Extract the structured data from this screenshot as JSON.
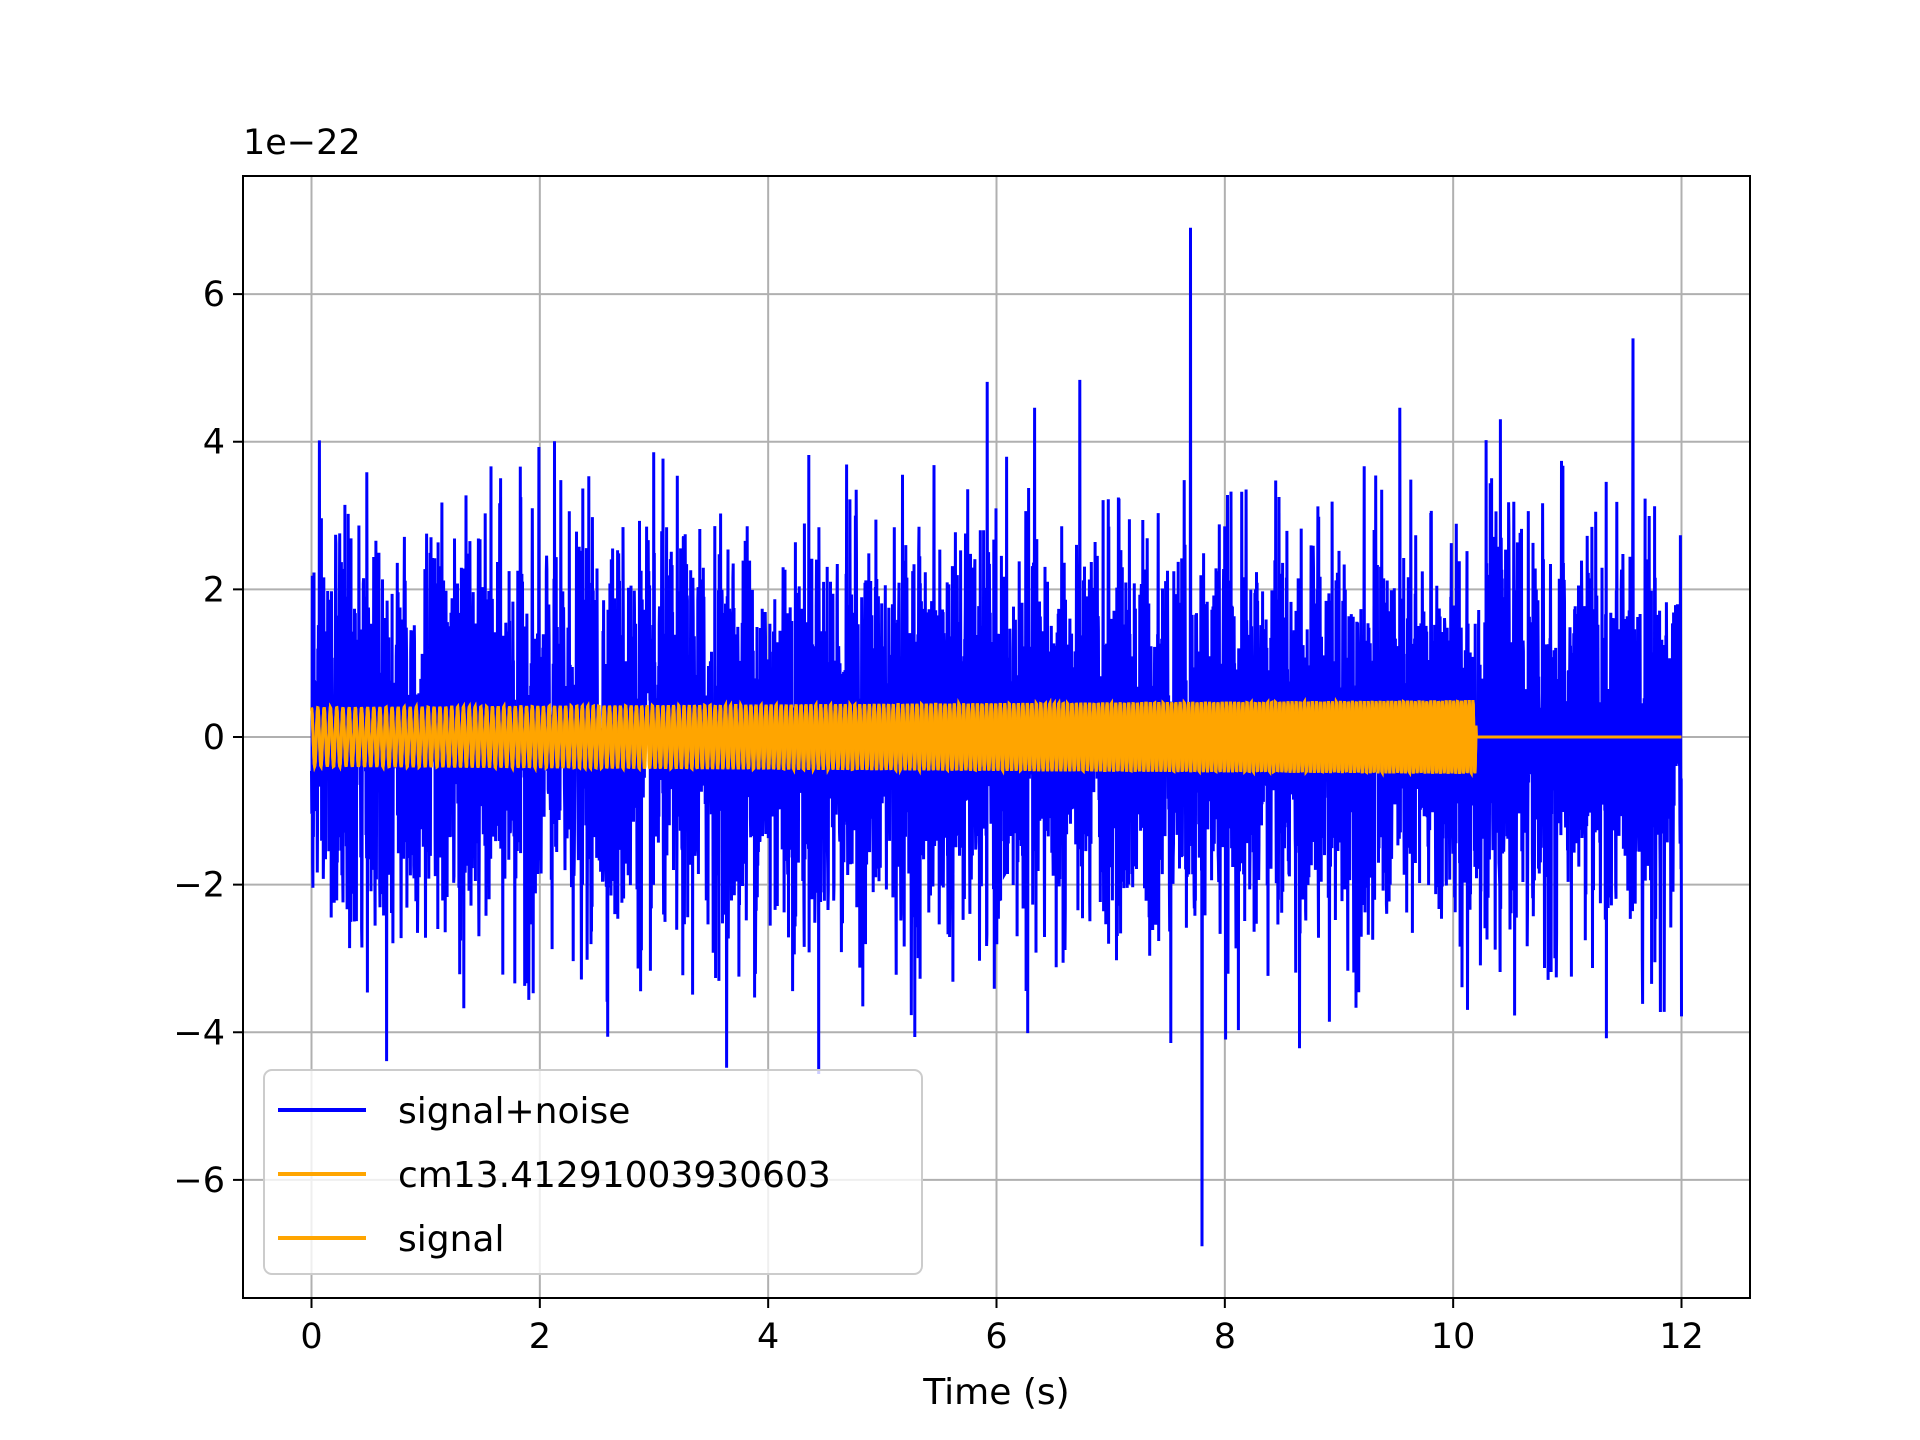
{
  "chart_data": {
    "type": "line",
    "title": "",
    "xlabel": "Time (s)",
    "ylabel": "",
    "offset_label": "1e−22",
    "xlim": [
      -0.6,
      12.6
    ],
    "ylim": [
      -7.6,
      7.6
    ],
    "xticks": [
      0,
      2,
      4,
      6,
      8,
      10,
      12
    ],
    "xtick_labels": [
      "0",
      "2",
      "4",
      "6",
      "8",
      "10",
      "12"
    ],
    "yticks": [
      -6,
      -4,
      -2,
      0,
      2,
      4,
      6
    ],
    "ytick_labels": [
      "−6",
      "−4",
      "−2",
      "0",
      "2",
      "4",
      "6"
    ],
    "grid": true,
    "legend_position": "lower-left",
    "series": [
      {
        "name": "signal+noise",
        "color": "#0000ff",
        "x_range": [
          0,
          12
        ],
        "description_values": {
          "typical_amplitude": 2.5,
          "max": 6.9,
          "max_at": 7.7,
          "min": -6.9,
          "min_at": 7.8
        }
      },
      {
        "name": "cm13.41291003930603",
        "color": "#ffa500",
        "x_range": [
          0,
          12
        ],
        "active_until": 10.2,
        "amplitude_start": 0.4,
        "amplitude_end": 0.5
      },
      {
        "name": "signal",
        "color": "#ffa500",
        "x_range": [
          0,
          12
        ],
        "active_until": 10.2,
        "amplitude_start": 0.4,
        "amplitude_end": 0.5
      }
    ]
  }
}
